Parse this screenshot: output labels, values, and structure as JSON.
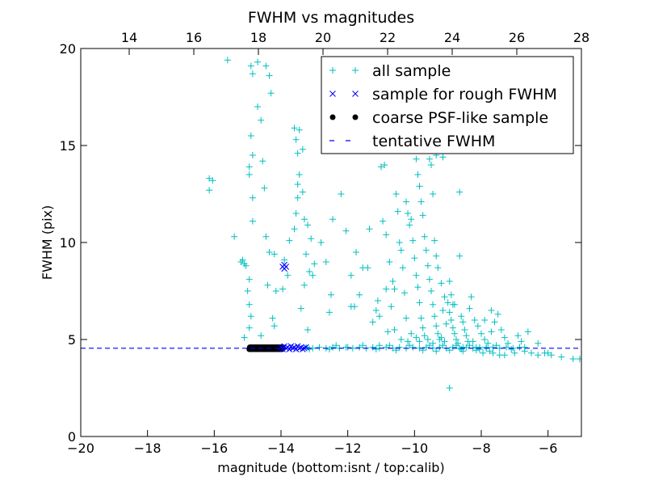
{
  "chart_data": {
    "type": "scatter",
    "title": "FWHM vs magnitudes",
    "xlabel": "magnitude (bottom:isnt / top:calib)",
    "ylabel": "FWHM (pix)",
    "xlim": [
      -20,
      -5
    ],
    "ylim": [
      0,
      20
    ],
    "top_xlim": [
      12.5,
      28
    ],
    "x_ticks": [
      -20,
      -18,
      -16,
      -14,
      -12,
      -10,
      -8,
      -6
    ],
    "x_tick_labels": [
      "−20",
      "−18",
      "−16",
      "−14",
      "−12",
      "−10",
      "−8",
      "−6"
    ],
    "top_x_ticks": [
      14,
      16,
      18,
      20,
      22,
      24,
      26,
      28
    ],
    "top_x_tick_labels": [
      "14",
      "16",
      "18",
      "20",
      "22",
      "24",
      "26",
      "28"
    ],
    "y_ticks": [
      0,
      5,
      10,
      15,
      20
    ],
    "y_tick_labels": [
      "0",
      "5",
      "10",
      "15",
      "20"
    ],
    "legend_position": "top-right",
    "colors": {
      "all": "#00bfbf",
      "rough": "#0000ff",
      "coarse": "#000000",
      "tentative": "#0000ff"
    },
    "tentative_fwhm": 4.55,
    "series": [
      {
        "name": "all sample",
        "marker": "plus",
        "color": "#00bfbf",
        "points": [
          [
            -16.15,
            13.3
          ],
          [
            -16.05,
            13.2
          ],
          [
            -16.15,
            12.7
          ],
          [
            -15.6,
            19.4
          ],
          [
            -15.4,
            10.3
          ],
          [
            -15.2,
            9.0
          ],
          [
            -15.1,
            8.9
          ],
          [
            -15.15,
            9.1
          ],
          [
            -15.05,
            8.8
          ],
          [
            -14.95,
            8.1
          ],
          [
            -15.0,
            7.5
          ],
          [
            -14.95,
            6.8
          ],
          [
            -14.9,
            19.1
          ],
          [
            -14.85,
            18.7
          ],
          [
            -14.9,
            15.5
          ],
          [
            -14.85,
            14.5
          ],
          [
            -14.95,
            13.9
          ],
          [
            -14.95,
            13.5
          ],
          [
            -14.85,
            12.3
          ],
          [
            -14.85,
            11.1
          ],
          [
            -14.9,
            6.2
          ],
          [
            -14.95,
            5.6
          ],
          [
            -15.1,
            5.1
          ],
          [
            -14.7,
            19.3
          ],
          [
            -14.7,
            17.0
          ],
          [
            -14.6,
            16.3
          ],
          [
            -14.55,
            14.2
          ],
          [
            -14.5,
            12.8
          ],
          [
            -14.45,
            19.1
          ],
          [
            -14.35,
            18.6
          ],
          [
            -14.3,
            17.7
          ],
          [
            -14.45,
            10.3
          ],
          [
            -14.35,
            9.5
          ],
          [
            -14.2,
            9.4
          ],
          [
            -14.4,
            7.8
          ],
          [
            -14.15,
            7.5
          ],
          [
            -14.25,
            6.1
          ],
          [
            -14.6,
            5.2
          ],
          [
            -14.2,
            5.7
          ],
          [
            -13.95,
            7.6
          ],
          [
            -13.8,
            8.3
          ],
          [
            -13.9,
            9.1
          ],
          [
            -13.75,
            10.1
          ],
          [
            -13.6,
            10.7
          ],
          [
            -13.55,
            11.5
          ],
          [
            -13.5,
            12.3
          ],
          [
            -13.45,
            13.5
          ],
          [
            -13.5,
            14.6
          ],
          [
            -13.55,
            15.3
          ],
          [
            -13.6,
            15.9
          ],
          [
            -13.45,
            15.8
          ],
          [
            -13.5,
            13.0
          ],
          [
            -13.35,
            12.6
          ],
          [
            -13.3,
            11.2
          ],
          [
            -13.2,
            10.9
          ],
          [
            -13.1,
            10.2
          ],
          [
            -13.25,
            9.4
          ],
          [
            -13.0,
            8.9
          ],
          [
            -13.15,
            8.5
          ],
          [
            -13.05,
            8.3
          ],
          [
            -13.3,
            7.8
          ],
          [
            -13.4,
            6.6
          ],
          [
            -13.2,
            5.5
          ],
          [
            -13.35,
            14.8
          ],
          [
            -12.8,
            10.0
          ],
          [
            -12.65,
            9.0
          ],
          [
            -12.5,
            7.3
          ],
          [
            -12.55,
            6.4
          ],
          [
            -12.45,
            11.2
          ],
          [
            -12.2,
            12.5
          ],
          [
            -12.05,
            10.6
          ],
          [
            -11.9,
            8.3
          ],
          [
            -11.9,
            6.7
          ],
          [
            -11.75,
            9.5
          ],
          [
            -11.65,
            7.3
          ],
          [
            -11.55,
            8.7
          ],
          [
            -11.4,
            8.7
          ],
          [
            -11.35,
            10.7
          ],
          [
            -11.2,
            15.0
          ],
          [
            -11.15,
            6.5
          ],
          [
            -11.1,
            7.0
          ],
          [
            -11.05,
            6.2
          ],
          [
            -11.0,
            13.9
          ],
          [
            -10.9,
            14.0
          ],
          [
            -10.95,
            11.1
          ],
          [
            -10.85,
            10.4
          ],
          [
            -10.75,
            9.0
          ],
          [
            -10.65,
            8.0
          ],
          [
            -10.6,
            7.6
          ],
          [
            -10.55,
            12.5
          ],
          [
            -10.5,
            11.6
          ],
          [
            -10.45,
            10.0
          ],
          [
            -10.4,
            9.6
          ],
          [
            -10.35,
            8.7
          ],
          [
            -10.3,
            7.4
          ],
          [
            -10.25,
            6.1
          ],
          [
            -10.25,
            12.1
          ],
          [
            -10.2,
            11.5
          ],
          [
            -10.15,
            10.9
          ],
          [
            -10.1,
            11.2
          ],
          [
            -10.05,
            10.1
          ],
          [
            -10.0,
            9.2
          ],
          [
            -9.95,
            8.3
          ],
          [
            -9.9,
            7.7
          ],
          [
            -9.85,
            6.9
          ],
          [
            -9.8,
            6.1
          ],
          [
            -9.75,
            5.6
          ],
          [
            -9.7,
            5.2
          ],
          [
            -9.95,
            14.3
          ],
          [
            -9.9,
            13.5
          ],
          [
            -9.85,
            12.9
          ],
          [
            -9.8,
            12.1
          ],
          [
            -9.75,
            11.4
          ],
          [
            -9.7,
            10.3
          ],
          [
            -9.65,
            9.6
          ],
          [
            -9.6,
            8.8
          ],
          [
            -9.55,
            8.1
          ],
          [
            -9.5,
            7.5
          ],
          [
            -9.45,
            6.8
          ],
          [
            -9.4,
            6.2
          ],
          [
            -9.35,
            5.7
          ],
          [
            -9.3,
            5.3
          ],
          [
            -9.25,
            5.0
          ],
          [
            -9.5,
            14.0
          ],
          [
            -9.45,
            12.5
          ],
          [
            -9.4,
            10.1
          ],
          [
            -9.35,
            9.3
          ],
          [
            -9.3,
            8.7
          ],
          [
            -9.2,
            7.9
          ],
          [
            -9.1,
            7.2
          ],
          [
            -9.0,
            6.9
          ],
          [
            -8.95,
            6.4
          ],
          [
            -8.9,
            6.0
          ],
          [
            -8.85,
            5.6
          ],
          [
            -8.8,
            5.3
          ],
          [
            -8.75,
            5.0
          ],
          [
            -8.7,
            4.8
          ],
          [
            -9.15,
            6.5
          ],
          [
            -9.05,
            5.8
          ],
          [
            -9.1,
            4.9
          ],
          [
            -8.95,
            8.0
          ],
          [
            -8.9,
            7.3
          ],
          [
            -8.85,
            6.8
          ],
          [
            -8.65,
            9.3
          ],
          [
            -8.6,
            6.2
          ],
          [
            -8.55,
            5.9
          ],
          [
            -8.5,
            5.5
          ],
          [
            -8.45,
            5.2
          ],
          [
            -8.4,
            4.9
          ],
          [
            -8.35,
            6.6
          ],
          [
            -8.3,
            7.2
          ],
          [
            -8.2,
            6.0
          ],
          [
            -8.1,
            5.7
          ],
          [
            -8.0,
            5.3
          ],
          [
            -7.9,
            5.0
          ],
          [
            -7.8,
            4.8
          ],
          [
            -7.7,
            5.4
          ],
          [
            -7.6,
            5.9
          ],
          [
            -7.5,
            6.3
          ],
          [
            -7.4,
            5.5
          ],
          [
            -7.3,
            5.1
          ],
          [
            -7.2,
            4.8
          ],
          [
            -7.1,
            4.5
          ],
          [
            -7.0,
            4.3
          ],
          [
            -6.9,
            5.2
          ],
          [
            -6.8,
            4.9
          ],
          [
            -6.7,
            4.6
          ],
          [
            -6.6,
            5.4
          ],
          [
            -6.5,
            4.3
          ],
          [
            -6.3,
            4.2
          ],
          [
            -6.1,
            4.3
          ],
          [
            -9.75,
            15.3
          ],
          [
            -9.55,
            14.3
          ],
          [
            -9.35,
            14.5
          ],
          [
            -9.15,
            14.4
          ],
          [
            -8.85,
            14.9
          ],
          [
            -8.65,
            12.6
          ],
          [
            -8.8,
            6.8
          ],
          [
            -8.95,
            2.5
          ],
          [
            -7.9,
            6.0
          ],
          [
            -7.7,
            6.5
          ],
          [
            -7.3,
            4.2
          ],
          [
            -6.7,
            4.4
          ],
          [
            -5.6,
            4.1
          ],
          [
            -5.25,
            4.0
          ],
          [
            -5.05,
            4.0
          ],
          [
            -5.9,
            4.2
          ],
          [
            -6.0,
            4.3
          ],
          [
            -6.3,
            4.8
          ],
          [
            -10.6,
            5.5
          ],
          [
            -10.4,
            5.0
          ],
          [
            -10.2,
            4.9
          ],
          [
            -10.1,
            5.3
          ],
          [
            -9.95,
            5.1
          ],
          [
            -9.85,
            4.9
          ],
          [
            -9.6,
            5.0
          ],
          [
            -9.45,
            4.8
          ],
          [
            -9.2,
            5.1
          ],
          [
            -11.25,
            5.9
          ],
          [
            -11.8,
            6.7
          ],
          [
            -10.7,
            6.7
          ],
          [
            -10.85,
            7.6
          ],
          [
            -10.8,
            5.4
          ],
          [
            -11.05,
            4.7
          ],
          [
            -12.0,
            4.6
          ],
          [
            -10.15,
            4.7
          ],
          [
            -8.25,
            4.9
          ],
          [
            -7.55,
            4.7
          ],
          [
            -7.85,
            4.6
          ],
          [
            -8.05,
            4.5
          ],
          [
            -8.55,
            4.6
          ],
          [
            -8.6,
            4.5
          ],
          [
            -7.65,
            4.3
          ],
          [
            -7.45,
            4.2
          ],
          [
            -7.95,
            4.3
          ],
          [
            -8.15,
            4.6
          ],
          [
            -13.25,
            4.6
          ],
          [
            -13.05,
            4.55
          ],
          [
            -12.85,
            4.6
          ],
          [
            -12.65,
            4.55
          ],
          [
            -12.45,
            4.6
          ],
          [
            -12.25,
            4.55
          ],
          [
            -12.05,
            4.6
          ],
          [
            -11.85,
            4.55
          ],
          [
            -11.65,
            4.6
          ],
          [
            -11.45,
            4.55
          ],
          [
            -11.25,
            4.6
          ],
          [
            -11.05,
            4.55
          ],
          [
            -10.85,
            4.6
          ],
          [
            -10.65,
            4.55
          ],
          [
            -10.45,
            4.6
          ],
          [
            -10.25,
            4.55
          ],
          [
            -10.05,
            4.6
          ],
          [
            -9.85,
            4.55
          ],
          [
            -9.65,
            4.6
          ],
          [
            -9.45,
            4.55
          ],
          [
            -9.25,
            4.6
          ],
          [
            -9.05,
            4.55
          ],
          [
            -8.85,
            4.6
          ],
          [
            -8.65,
            4.55
          ],
          [
            -8.45,
            4.6
          ],
          [
            -8.25,
            4.55
          ],
          [
            -8.05,
            4.6
          ],
          [
            -7.85,
            4.55
          ],
          [
            -7.65,
            4.6
          ],
          [
            -7.45,
            4.55
          ],
          [
            -7.25,
            4.6
          ],
          [
            -7.05,
            4.55
          ],
          [
            -6.85,
            4.6
          ],
          [
            -9.75,
            4.45
          ],
          [
            -9.35,
            4.4
          ],
          [
            -8.95,
            4.45
          ],
          [
            -8.55,
            4.4
          ],
          [
            -8.15,
            4.45
          ],
          [
            -7.75,
            4.4
          ],
          [
            -10.55,
            4.45
          ],
          [
            -11.15,
            4.5
          ],
          [
            -12.55,
            4.5
          ],
          [
            -13.15,
            4.5
          ],
          [
            -9.55,
            4.7
          ],
          [
            -9.15,
            4.7
          ],
          [
            -8.75,
            4.7
          ],
          [
            -8.35,
            4.7
          ],
          [
            -10.75,
            4.7
          ],
          [
            -11.55,
            4.7
          ],
          [
            -12.35,
            4.7
          ]
        ]
      },
      {
        "name": "sample for rough FWHM",
        "marker": "x",
        "color": "#0000ff",
        "points": [
          [
            -13.95,
            8.75
          ],
          [
            -13.85,
            8.75
          ],
          [
            -13.9,
            8.65
          ],
          [
            -13.9,
            8.85
          ],
          [
            -14.0,
            4.6
          ],
          [
            -13.95,
            4.5
          ],
          [
            -13.9,
            4.65
          ],
          [
            -13.85,
            4.55
          ],
          [
            -13.8,
            4.6
          ],
          [
            -13.75,
            4.5
          ],
          [
            -13.7,
            4.65
          ],
          [
            -13.65,
            4.55
          ],
          [
            -13.6,
            4.6
          ],
          [
            -13.55,
            4.5
          ],
          [
            -13.5,
            4.65
          ],
          [
            -13.45,
            4.55
          ],
          [
            -13.4,
            4.6
          ],
          [
            -13.35,
            4.5
          ],
          [
            -13.3,
            4.55
          ],
          [
            -13.25,
            4.6
          ]
        ]
      },
      {
        "name": "coarse PSF-like sample",
        "marker": "circle",
        "color": "#000000",
        "x_range": [
          -14.95,
          -13.95
        ],
        "y_values": [
          4.5,
          4.6
        ],
        "count": 60
      }
    ],
    "legend": [
      {
        "label": "all sample",
        "marker": "plus"
      },
      {
        "label": "sample for rough FWHM",
        "marker": "x"
      },
      {
        "label": "coarse PSF-like sample",
        "marker": "circle"
      },
      {
        "label": "tentative FWHM",
        "marker": "dash"
      }
    ]
  }
}
